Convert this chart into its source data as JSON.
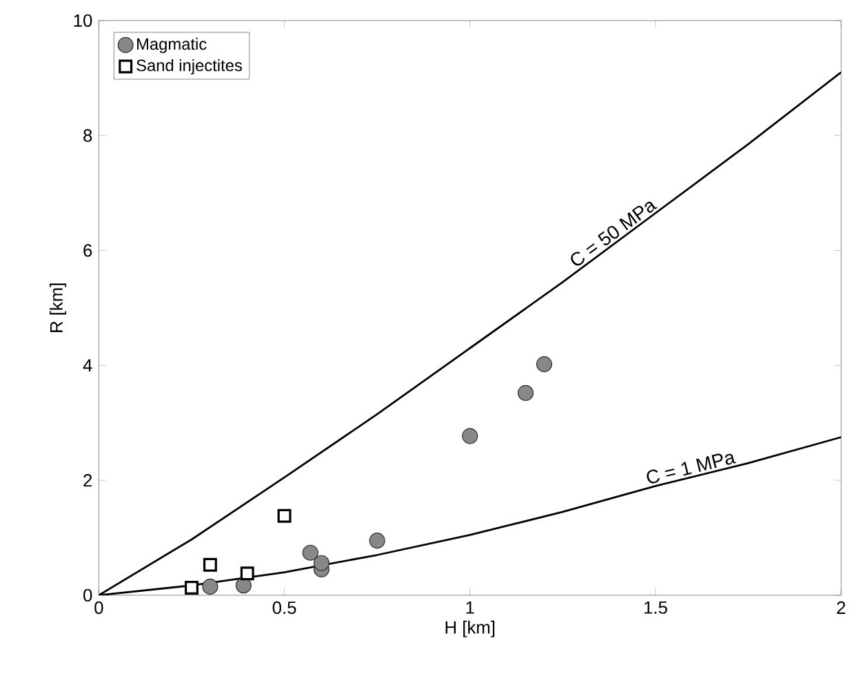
{
  "chart_data": {
    "type": "scatter",
    "xlabel": "H [km]",
    "ylabel": "R [km]",
    "xlim": [
      0,
      2
    ],
    "ylim": [
      0,
      10
    ],
    "xticks": [
      0,
      0.5,
      1,
      1.5,
      2
    ],
    "yticks": [
      0,
      2,
      4,
      6,
      8,
      10
    ],
    "legend": "top left",
    "grid": false,
    "series": [
      {
        "name": "Magmatic",
        "marker": "circle",
        "color": "#888888",
        "x": [
          0.3,
          0.39,
          0.57,
          0.6,
          0.6,
          0.75,
          1.0,
          1.15,
          1.2
        ],
        "values": [
          0.15,
          0.17,
          0.74,
          0.45,
          0.56,
          0.95,
          2.77,
          3.52,
          4.02
        ]
      },
      {
        "name": "Sand injectites",
        "marker": "square",
        "color": "#000000",
        "x": [
          0.25,
          0.3,
          0.4,
          0.5
        ],
        "values": [
          0.13,
          0.53,
          0.38,
          1.38
        ]
      },
      {
        "type": "line",
        "marker": "none",
        "color": "#000000",
        "x": [
          0,
          0.25,
          0.5,
          0.75,
          1,
          1.25,
          1.5,
          1.75,
          2
        ],
        "values": [
          0,
          0.97,
          2.05,
          3.15,
          4.3,
          5.45,
          6.65,
          7.85,
          9.1
        ]
      },
      {
        "type": "line",
        "marker": "none",
        "color": "#000000",
        "x": [
          0,
          0.25,
          0.5,
          0.75,
          1,
          1.25,
          1.5,
          1.75,
          2
        ],
        "values": [
          0,
          0.17,
          0.4,
          0.7,
          1.05,
          1.45,
          1.9,
          2.3,
          2.75
        ]
      }
    ],
    "annotations": [
      {
        "text": "C = 50 MPa",
        "x": 1.4,
        "y": 6.17
      },
      {
        "text": "C = 1 MPa",
        "x": 1.6,
        "y": 2.06
      }
    ]
  }
}
